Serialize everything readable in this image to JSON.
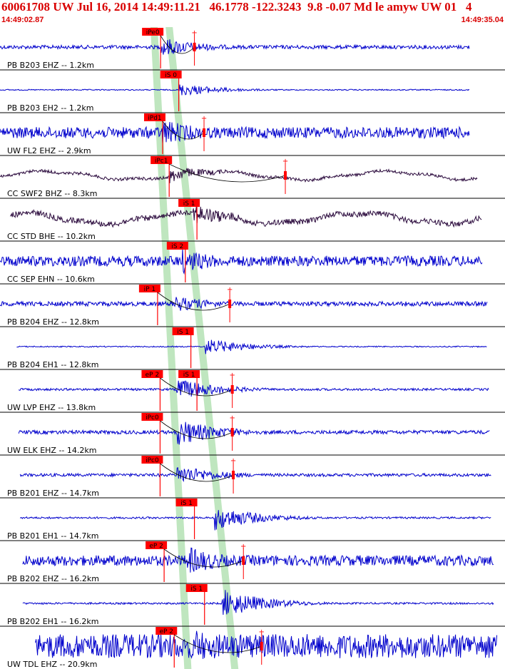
{
  "header": {
    "title": "60061708 UW Jul 16, 2014 14:49:11.21   46.1778 -122.3243  9.8 -0.07 Md le amyw UW 01   4",
    "time_start": "14:49:02.87",
    "time_end": "14:49:35.04"
  },
  "colors": {
    "header_text": "#d90000",
    "trace_blue": "#0000cc",
    "trace_dark": "#2b0a3d",
    "pick_box": "#ff0000",
    "pick_text": "#000000",
    "band_green": "#bfe6bf",
    "separator": "#000000",
    "station_text": "#000000",
    "coda_curve": "#000000"
  },
  "chart_data": {
    "type": "line",
    "title": "60061708 UW Jul 16, 2014 14:49:11.21   46.1778 -122.3243  9.8 -0.07 Md le amyw UW 01   4",
    "x_range_time": [
      "14:49:02.87",
      "14:49:35.04"
    ],
    "channels": [
      {
        "label": "PB B203 EHZ -- 1.2km",
        "picks": [
          {
            "text": "iPe0",
            "t": 0.318
          }
        ],
        "amp_marks": [
          {
            "t": 0.385
          }
        ],
        "color": "blue",
        "start": 0.0,
        "end": 0.93,
        "onset": 0.318,
        "noise": 0.1,
        "burst": 0.55
      },
      {
        "label": "PB B203 EH2 -- 1.2km",
        "picks": [
          {
            "text": "iS 0",
            "t": 0.354
          }
        ],
        "amp_marks": [],
        "color": "blue",
        "start": 0.0,
        "end": 0.93,
        "onset": 0.354,
        "noise": 0.03,
        "burst": 0.35
      },
      {
        "label": "UW FL2 EHZ -- 2.9km",
        "picks": [
          {
            "text": "iPd1",
            "t": 0.322
          }
        ],
        "amp_marks": [
          {
            "t": 0.404
          }
        ],
        "color": "blue",
        "start": 0.0,
        "end": 0.93,
        "onset": 0.322,
        "noise": 0.3,
        "burst": 0.75
      },
      {
        "label": "CC SWF2 BHZ -- 8.3km",
        "picks": [
          {
            "text": "iPc1",
            "t": 0.335
          }
        ],
        "amp_marks": [
          {
            "t": 0.565
          }
        ],
        "color": "dark",
        "start": 0.0,
        "end": 0.945,
        "onset": 0.335,
        "noise": 0.08,
        "burst": 0.4,
        "drift": 0.35
      },
      {
        "label": "CC STD BHE -- 10.2km",
        "picks": [
          {
            "text": "iS 1",
            "t": 0.39
          }
        ],
        "amp_marks": [],
        "color": "dark",
        "start": 0.02,
        "end": 0.955,
        "onset": 0.38,
        "noise": 0.15,
        "burst": 0.6,
        "drift": 0.45
      },
      {
        "label": "CC SEP EHN -- 10.6km",
        "picks": [
          {
            "text": "iS 2",
            "t": 0.367
          }
        ],
        "amp_marks": [],
        "color": "blue",
        "start": 0.0,
        "end": 0.955,
        "onset": 0.36,
        "noise": 0.28,
        "burst": 0.7
      },
      {
        "label": "PB B204 EHZ -- 12.8km",
        "picks": [
          {
            "text": "iP 1",
            "t": 0.312
          }
        ],
        "amp_marks": [
          {
            "t": 0.455
          }
        ],
        "color": "blue",
        "start": 0.0,
        "end": 0.965,
        "onset": 0.345,
        "noise": 0.12,
        "burst": 0.45
      },
      {
        "label": "PB B204 EH1 -- 12.8km",
        "picks": [
          {
            "text": "iS 1",
            "t": 0.378
          }
        ],
        "amp_marks": [],
        "color": "blue",
        "start": 0.033,
        "end": 0.965,
        "onset": 0.405,
        "noise": 0.03,
        "burst": 0.45
      },
      {
        "label": "UW LVP EHZ -- 13.8km",
        "picks": [
          {
            "text": "eP 2",
            "t": 0.317
          },
          {
            "text": "iS 1",
            "t": 0.39
          }
        ],
        "amp_marks": [
          {
            "t": 0.46
          }
        ],
        "color": "blue",
        "start": 0.037,
        "end": 0.968,
        "onset": 0.35,
        "noise": 0.06,
        "burst": 0.6
      },
      {
        "label": "UW ELK EHZ -- 14.2km",
        "picks": [
          {
            "text": "iPc0",
            "t": 0.317
          }
        ],
        "amp_marks": [
          {
            "t": 0.46
          }
        ],
        "color": "blue",
        "start": 0.037,
        "end": 0.97,
        "onset": 0.35,
        "noise": 0.1,
        "burst": 0.75
      },
      {
        "label": "PB B201 EHZ -- 14.7km",
        "picks": [
          {
            "text": "iPc0",
            "t": 0.317
          }
        ],
        "amp_marks": [
          {
            "t": 0.462
          }
        ],
        "color": "blue",
        "start": 0.04,
        "end": 0.973,
        "onset": 0.35,
        "noise": 0.08,
        "burst": 0.55
      },
      {
        "label": "PB B201 EH1 -- 14.7km",
        "picks": [
          {
            "text": "iS 1",
            "t": 0.385
          }
        ],
        "amp_marks": [],
        "color": "blue",
        "start": 0.04,
        "end": 0.973,
        "onset": 0.425,
        "noise": 0.05,
        "burst": 0.7
      },
      {
        "label": "PB B202 EHZ -- 16.2km",
        "picks": [
          {
            "text": "eP 2",
            "t": 0.325
          }
        ],
        "amp_marks": [
          {
            "t": 0.482
          }
        ],
        "color": "blue",
        "start": 0.045,
        "end": 0.978,
        "onset": 0.37,
        "noise": 0.28,
        "burst": 0.8
      },
      {
        "label": "PB B202 EH1 -- 16.2km",
        "picks": [
          {
            "text": "iS 1",
            "t": 0.405
          }
        ],
        "amp_marks": [],
        "color": "blue",
        "start": 0.045,
        "end": 0.978,
        "onset": 0.44,
        "noise": 0.05,
        "burst": 0.8
      },
      {
        "label": "UW TDL EHZ -- 20.9km",
        "picks": [
          {
            "text": "eP 2",
            "t": 0.345
          }
        ],
        "amp_marks": [
          {
            "t": 0.518
          }
        ],
        "color": "blue",
        "start": 0.07,
        "end": 0.985,
        "onset": 0.385,
        "noise": 0.65,
        "burst": 0.95
      }
    ],
    "pick_bands": [
      {
        "t_top": 0.305,
        "t_bottom": 0.372
      },
      {
        "t_top": 0.335,
        "t_bottom": 0.465
      }
    ]
  }
}
